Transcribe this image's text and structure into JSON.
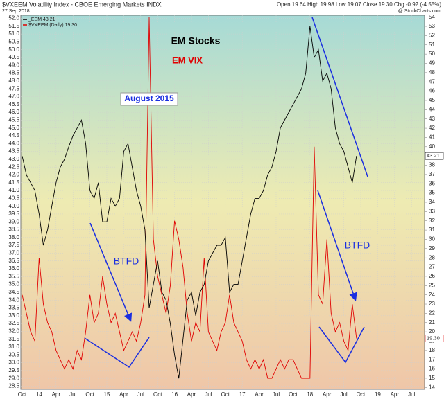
{
  "chart_data": {
    "type": "line",
    "title": "$VXEEM Volatility Index - CBOE Emerging Markets INDX",
    "subtitle": "27 Sep 2018",
    "quote": "Open 19.64  High 19.98  Low 19.07  Close 19.30  Chg -0.92 (-4.55%)",
    "credit": "@ StockCharts.com",
    "annotations": [
      "EM Stocks",
      "EM VIX",
      "August 2015",
      "BTFD",
      "BTFD"
    ],
    "categories": [
      "Oct",
      null,
      null,
      null,
      "14",
      null,
      null,
      null,
      "Apr",
      null,
      null,
      null,
      "Jul",
      null,
      null,
      null,
      "Oct",
      null,
      null,
      null,
      "15",
      null,
      null,
      null,
      "Apr",
      null,
      null,
      null,
      "Jul",
      null,
      null,
      null,
      "Oct",
      null,
      null,
      null,
      "16",
      null,
      null,
      null,
      "Apr",
      null,
      null,
      null,
      "Jul",
      null,
      null,
      null,
      "Oct",
      null,
      null,
      null,
      "17",
      null,
      null,
      null,
      "Apr",
      null,
      null,
      null,
      "Jul",
      null,
      null,
      null,
      "Oct",
      null,
      null,
      null,
      "18",
      null,
      null,
      null,
      "Apr",
      null,
      null,
      null,
      "Jul",
      null,
      null,
      null,
      "Oct",
      null,
      null,
      null,
      "19",
      null,
      null,
      null,
      "Apr",
      null,
      null,
      null,
      "Jul",
      null,
      null,
      null
    ],
    "series": [
      {
        "name": "_EEM 43.21",
        "color": "#000000",
        "current": "43.21",
        "values": [
          43.2,
          42.0,
          41.5,
          41.0,
          39.5,
          37.5,
          38.5,
          40.0,
          41.5,
          42.5,
          43.0,
          43.8,
          44.5,
          45.0,
          45.5,
          44.0,
          41.0,
          40.5,
          41.5,
          39.0,
          39.0,
          40.5,
          40.0,
          40.5,
          43.5,
          44.0,
          42.5,
          41.0,
          40.0,
          38.5,
          33.5,
          35.0,
          36.5,
          34.5,
          34.0,
          32.5,
          30.5,
          29.0,
          31.5,
          34.0,
          34.5,
          33.0,
          34.5,
          35.0,
          36.5,
          37.0,
          37.5,
          37.5,
          38.0,
          34.5,
          35.0,
          35.0,
          36.5,
          38.0,
          39.5,
          40.5,
          40.5,
          41.0,
          42.0,
          42.5,
          43.5,
          45.0,
          45.5,
          46.0,
          46.5,
          47.0,
          47.5,
          48.5,
          51.5,
          49.5,
          50.0,
          48.0,
          48.5,
          47.5,
          45.0,
          44.0,
          43.5,
          42.5,
          41.5,
          43.21,
          null,
          null,
          null,
          null,
          null,
          null,
          null,
          null,
          null,
          null,
          null,
          null,
          null,
          null,
          null,
          null
        ]
      },
      {
        "name": "$VXEEM (Daily) 19.30",
        "color": "#e00000",
        "axis": "y2",
        "current": "19.30",
        "values": [
          24,
          22,
          20,
          19,
          28,
          23,
          21,
          20,
          18,
          17,
          16,
          17,
          16,
          18,
          17,
          20,
          24,
          21,
          22,
          26,
          23,
          21,
          22,
          20,
          18,
          19,
          20,
          19,
          21,
          24,
          54,
          30,
          26,
          24,
          22,
          25,
          32,
          30,
          27,
          22,
          19,
          21,
          20,
          28,
          20,
          19,
          18,
          20,
          21,
          24,
          21,
          20,
          19,
          17,
          16,
          17,
          16,
          17,
          15,
          15,
          16,
          17,
          16,
          17,
          17,
          16,
          15,
          15,
          15,
          40,
          24,
          23,
          30,
          22,
          20,
          21,
          19,
          18,
          23,
          19.3,
          null,
          null,
          null,
          null,
          null,
          null,
          null,
          null,
          null,
          null,
          null,
          null,
          null,
          null,
          null,
          null
        ]
      }
    ],
    "ylim": [
      28.3,
      52.2
    ],
    "yticks": [
      28.5,
      {
        "value": 29,
        "label": "29.0"
      },
      29.5,
      {
        "value": 30,
        "label": "30.0"
      },
      30.5,
      {
        "value": 31,
        "label": "31.0"
      },
      31.5,
      {
        "value": 32,
        "label": "32.0"
      },
      32.5,
      {
        "value": 33,
        "label": "33.0"
      },
      33.5,
      {
        "value": 34,
        "label": "34.0"
      },
      34.5,
      {
        "value": 35,
        "label": "35.0"
      },
      35.5,
      {
        "value": 36,
        "label": "36.0"
      },
      36.5,
      {
        "value": 37,
        "label": "37.0"
      },
      37.5,
      {
        "value": 38,
        "label": "38.0"
      },
      38.5,
      {
        "value": 39,
        "label": "39.0"
      },
      39.5,
      {
        "value": 40,
        "label": "40.0"
      },
      40.5,
      {
        "value": 41,
        "label": "41.0"
      },
      41.5,
      {
        "value": 42,
        "label": "42.0"
      },
      42.5,
      {
        "value": 43,
        "label": "43.0"
      },
      43.5,
      {
        "value": 44,
        "label": "44.0"
      },
      44.5,
      {
        "value": 45,
        "label": "45.0"
      },
      45.5,
      {
        "value": 46,
        "label": "46.0"
      },
      46.5,
      {
        "value": 47,
        "label": "47.0"
      },
      47.5,
      {
        "value": 48,
        "label": "48.0"
      },
      48.5,
      {
        "value": 49,
        "label": "49.0"
      },
      49.5,
      {
        "value": 50,
        "label": "50.0"
      },
      50.5,
      {
        "value": 51,
        "label": "51.0"
      },
      51.5,
      {
        "value": 52,
        "label": "52.0"
      }
    ],
    "y2lim": [
      13.8,
      54.2
    ],
    "y2ticks": [
      14,
      15,
      16,
      17,
      18,
      19,
      20,
      21,
      22,
      23,
      24,
      25,
      26,
      27,
      28,
      29,
      30,
      31,
      32,
      33,
      34,
      35,
      36,
      37,
      38,
      39,
      40,
      41,
      42,
      43,
      44,
      45,
      46,
      47,
      48,
      49,
      50,
      51,
      52,
      53,
      54
    ],
    "grid": true
  }
}
